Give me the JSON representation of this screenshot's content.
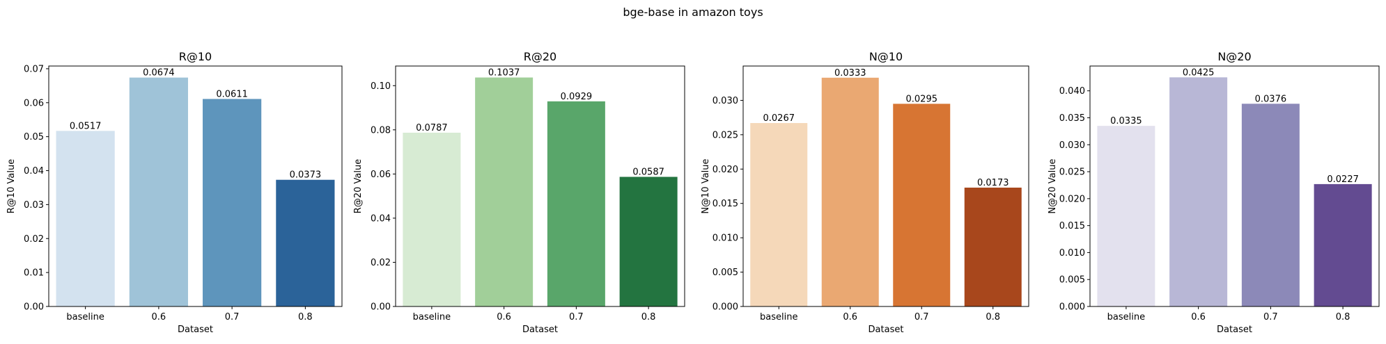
{
  "figure": {
    "suptitle": "bge-base in amazon toys"
  },
  "chart_data": [
    {
      "type": "bar",
      "title": "R@10",
      "xlabel": "Dataset",
      "ylabel": "R@10 Value",
      "categories": [
        "baseline",
        "0.6",
        "0.7",
        "0.8"
      ],
      "values": [
        0.0517,
        0.0674,
        0.0611,
        0.0373
      ],
      "value_labels": [
        "0.0517",
        "0.0674",
        "0.0611",
        "0.0373"
      ],
      "colors": [
        "#d3e2ef",
        "#9fc3d8",
        "#5e95bc",
        "#2b6399"
      ],
      "ylim": [
        0,
        0.0708
      ],
      "yticks": [
        0,
        0.01,
        0.02,
        0.03,
        0.04,
        0.05,
        0.06,
        0.07
      ],
      "ytick_labels": [
        "0.00",
        "0.01",
        "0.02",
        "0.03",
        "0.04",
        "0.05",
        "0.06",
        "0.07"
      ],
      "grid": false
    },
    {
      "type": "bar",
      "title": "R@20",
      "xlabel": "Dataset",
      "ylabel": "R@20 Value",
      "categories": [
        "baseline",
        "0.6",
        "0.7",
        "0.8"
      ],
      "values": [
        0.0787,
        0.1037,
        0.0929,
        0.0587
      ],
      "value_labels": [
        "0.0787",
        "0.1037",
        "0.0929",
        "0.0587"
      ],
      "colors": [
        "#d7ebd3",
        "#a1cf99",
        "#59a66a",
        "#237440"
      ],
      "ylim": [
        0,
        0.1089
      ],
      "yticks": [
        0,
        0.02,
        0.04,
        0.06,
        0.08,
        0.1
      ],
      "ytick_labels": [
        "0.00",
        "0.02",
        "0.04",
        "0.06",
        "0.08",
        "0.10"
      ],
      "grid": false
    },
    {
      "type": "bar",
      "title": "N@10",
      "xlabel": "Dataset",
      "ylabel": "N@10 Value",
      "categories": [
        "baseline",
        "0.6",
        "0.7",
        "0.8"
      ],
      "values": [
        0.0267,
        0.0333,
        0.0295,
        0.0173
      ],
      "value_labels": [
        "0.0267",
        "0.0333",
        "0.0295",
        "0.0173"
      ],
      "colors": [
        "#f5d8b9",
        "#eaa872",
        "#d77533",
        "#a8471c"
      ],
      "ylim": [
        0,
        0.035
      ],
      "yticks": [
        0,
        0.005,
        0.01,
        0.015,
        0.02,
        0.025,
        0.03
      ],
      "ytick_labels": [
        "0.000",
        "0.005",
        "0.010",
        "0.015",
        "0.020",
        "0.025",
        "0.030"
      ],
      "grid": false
    },
    {
      "type": "bar",
      "title": "N@20",
      "xlabel": "Dataset",
      "ylabel": "N@20 Value",
      "categories": [
        "baseline",
        "0.6",
        "0.7",
        "0.8"
      ],
      "values": [
        0.0335,
        0.0425,
        0.0376,
        0.0227
      ],
      "value_labels": [
        "0.0335",
        "0.0425",
        "0.0376",
        "0.0227"
      ],
      "colors": [
        "#e3e1ee",
        "#b8b7d6",
        "#8c89b8",
        "#634b91"
      ],
      "ylim": [
        0,
        0.0446
      ],
      "yticks": [
        0,
        0.005,
        0.01,
        0.015,
        0.02,
        0.025,
        0.03,
        0.035,
        0.04
      ],
      "ytick_labels": [
        "0.000",
        "0.005",
        "0.010",
        "0.015",
        "0.020",
        "0.025",
        "0.030",
        "0.035",
        "0.040"
      ],
      "grid": false
    }
  ]
}
